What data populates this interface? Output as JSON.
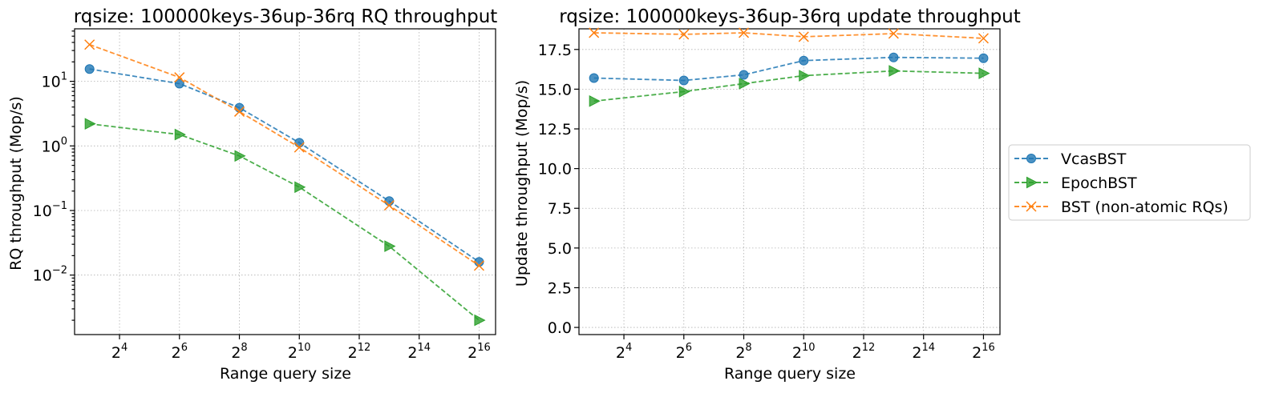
{
  "chart_data": [
    {
      "type": "line",
      "title": "rqsize: 100000keys-36up-36rq RQ throughput",
      "xlabel": "Range query size",
      "ylabel": "RQ throughput (Mop/s)",
      "xscale": "log2",
      "yscale": "log10",
      "x": [
        8,
        64,
        256,
        1024,
        8192,
        65536
      ],
      "xticks": [
        16,
        64,
        256,
        1024,
        4096,
        16384,
        65536
      ],
      "xtick_labels": [
        {
          "base": "2",
          "exp": "4"
        },
        {
          "base": "2",
          "exp": "6"
        },
        {
          "base": "2",
          "exp": "8"
        },
        {
          "base": "2",
          "exp": "10"
        },
        {
          "base": "2",
          "exp": "12"
        },
        {
          "base": "2",
          "exp": "14"
        },
        {
          "base": "2",
          "exp": "16"
        }
      ],
      "ytick_labels": [
        {
          "base": "10",
          "exp": "1"
        },
        {
          "base": "10",
          "exp": "0"
        },
        {
          "base": "10",
          "exp": "−1"
        },
        {
          "base": "10",
          "exp": "−2"
        }
      ],
      "ylim": [
        0.0012,
        65
      ],
      "grid": true,
      "series": [
        {
          "name": "VcasBST",
          "color": "#1f77b4",
          "marker": "circle",
          "values": [
            15.5,
            9.2,
            3.9,
            1.12,
            0.14,
            0.016
          ]
        },
        {
          "name": "EpochBST",
          "color": "#2ca02c",
          "marker": "triangle-right",
          "values": [
            2.2,
            1.5,
            0.7,
            0.23,
            0.028,
            0.002
          ]
        },
        {
          "name": "BST (non-atomic RQs)",
          "color": "#ff7f0e",
          "marker": "x",
          "values": [
            37,
            11.5,
            3.4,
            0.95,
            0.12,
            0.014
          ]
        }
      ]
    },
    {
      "type": "line",
      "title": "rqsize: 100000keys-36up-36rq update throughput",
      "xlabel": "Range query size",
      "ylabel": "Update throughput (Mop/s)",
      "xscale": "log2",
      "yscale": "linear",
      "x": [
        8,
        64,
        256,
        1024,
        8192,
        65536
      ],
      "xticks": [
        16,
        64,
        256,
        1024,
        4096,
        16384,
        65536
      ],
      "xtick_labels": [
        {
          "base": "2",
          "exp": "4"
        },
        {
          "base": "2",
          "exp": "6"
        },
        {
          "base": "2",
          "exp": "8"
        },
        {
          "base": "2",
          "exp": "10"
        },
        {
          "base": "2",
          "exp": "12"
        },
        {
          "base": "2",
          "exp": "14"
        },
        {
          "base": "2",
          "exp": "16"
        }
      ],
      "yticks": [
        0,
        2.5,
        5,
        7.5,
        10,
        12.5,
        15,
        17.5
      ],
      "ytick_labels": [
        "0.0",
        "2.5",
        "5.0",
        "7.5",
        "10.0",
        "12.5",
        "15.0",
        "17.5"
      ],
      "ylim": [
        -0.45,
        18.8
      ],
      "grid": true,
      "series": [
        {
          "name": "VcasBST",
          "color": "#1f77b4",
          "marker": "circle",
          "values": [
            15.7,
            15.55,
            15.9,
            16.8,
            17.0,
            16.95
          ]
        },
        {
          "name": "EpochBST",
          "color": "#2ca02c",
          "marker": "triangle-right",
          "values": [
            14.25,
            14.85,
            15.35,
            15.85,
            16.15,
            16.0
          ]
        },
        {
          "name": "BST (non-atomic RQs)",
          "color": "#ff7f0e",
          "marker": "x",
          "values": [
            18.55,
            18.45,
            18.55,
            18.3,
            18.5,
            18.2
          ]
        }
      ]
    }
  ],
  "legend": {
    "placement": "right",
    "entries": [
      {
        "label": "VcasBST",
        "color": "#1f77b4",
        "marker": "circle"
      },
      {
        "label": "EpochBST",
        "color": "#2ca02c",
        "marker": "triangle-right"
      },
      {
        "label": "BST (non-atomic RQs)",
        "color": "#ff7f0e",
        "marker": "x"
      }
    ]
  }
}
